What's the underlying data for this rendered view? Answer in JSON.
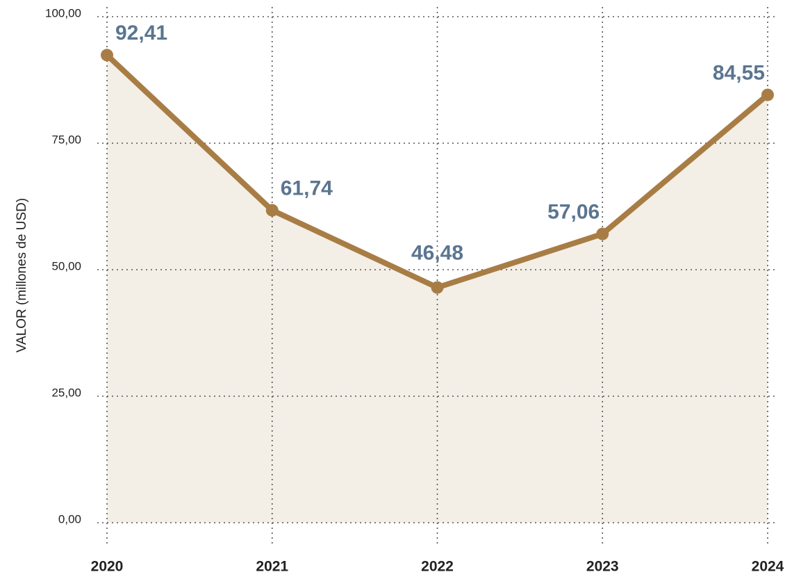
{
  "chart_data": {
    "type": "line",
    "y_label": "VALOR (millones de USD)",
    "categories": [
      "2020",
      "2021",
      "2022",
      "2023",
      "2024"
    ],
    "series": [
      {
        "name": "VALOR",
        "color": "#a87d45",
        "fill": "#f3efe6",
        "values": [
          92.41,
          61.74,
          46.48,
          57.06,
          84.55
        ],
        "value_labels": [
          "92,41",
          "61,74",
          "46,48",
          "57,06",
          "84,55"
        ]
      }
    ],
    "ylim": [
      0,
      100
    ],
    "yticks": [
      {
        "value": 0,
        "label": "0,00"
      },
      {
        "value": 25,
        "label": "25,00"
      },
      {
        "value": 50,
        "label": "50,00"
      },
      {
        "value": 75,
        "label": "75,00"
      },
      {
        "value": 100,
        "label": "100,00"
      }
    ],
    "grid": true
  }
}
